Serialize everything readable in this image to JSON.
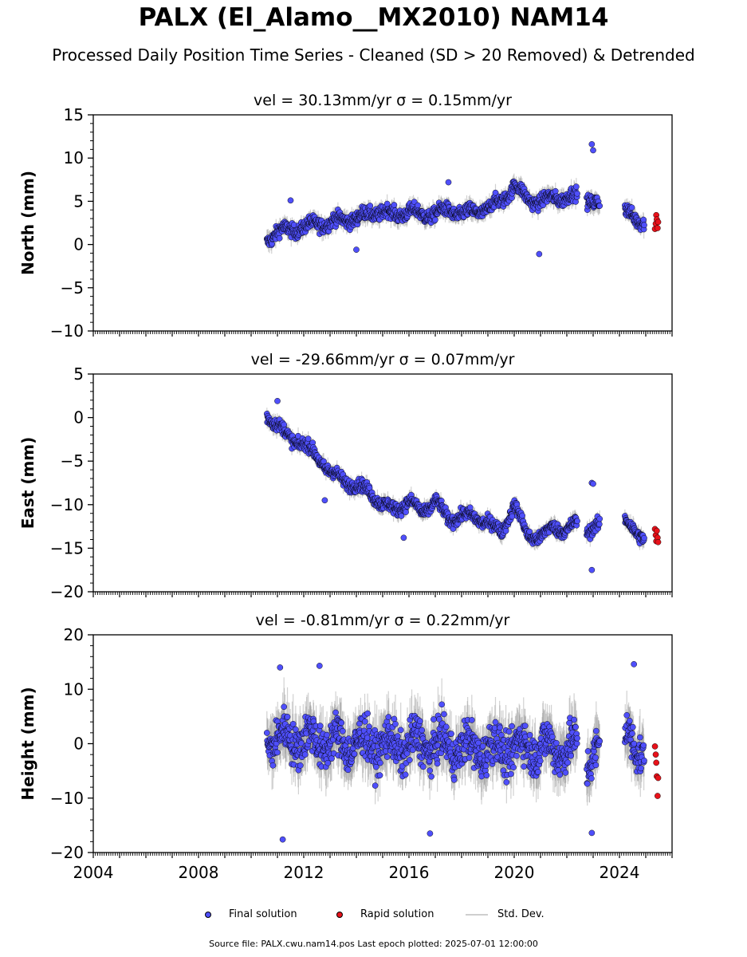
{
  "title": "PALX (El_Alamo__MX2010) NAM14",
  "subtitle": "Processed Daily Position Time Series - Cleaned (SD > 20 Removed) & Detrended",
  "legend": {
    "final": "Final solution",
    "rapid": "Rapid solution",
    "std": "Std. Dev."
  },
  "source": "Source file: PALX.cwu.nam14.pos  Last epoch plotted: 2025-07-01 12:00:00",
  "colors": {
    "final": "#4f4ffb",
    "rapid": "#e8121a",
    "std": "#9a9a9a",
    "outline": "#000000"
  },
  "chart_data": [
    {
      "type": "scatter",
      "panel": "north",
      "title_vel": "vel = 30.13mm/yr",
      "title_sigma": "σ = 0.15mm/yr",
      "ylabel": "North (mm)",
      "ylim": [
        -10,
        15
      ],
      "yticks": [
        "15",
        "10",
        "5",
        "0",
        "−5",
        "−10"
      ],
      "xlim": [
        2004,
        2026
      ],
      "gaps": [
        [
          2022.4,
          2022.75
        ],
        [
          2023.25,
          2024.2
        ],
        [
          2024.95,
          2025.25
        ]
      ],
      "final_trend": [
        [
          2010.6,
          0.5
        ],
        [
          2011.0,
          1.5
        ],
        [
          2011.5,
          1.7
        ],
        [
          2012.0,
          2.0
        ],
        [
          2012.5,
          2.4
        ],
        [
          2013.0,
          2.5
        ],
        [
          2013.5,
          2.9
        ],
        [
          2014.0,
          3.0
        ],
        [
          2014.5,
          3.6
        ],
        [
          2015.0,
          3.8
        ],
        [
          2015.5,
          3.4
        ],
        [
          2016.0,
          3.9
        ],
        [
          2016.5,
          3.4
        ],
        [
          2017.0,
          3.6
        ],
        [
          2017.5,
          4.0
        ],
        [
          2018.0,
          3.5
        ],
        [
          2018.5,
          3.8
        ],
        [
          2019.0,
          4.2
        ],
        [
          2019.5,
          5.0
        ],
        [
          2020.0,
          6.8
        ],
        [
          2020.5,
          5.3
        ],
        [
          2021.0,
          4.9
        ],
        [
          2021.5,
          5.5
        ],
        [
          2022.0,
          5.4
        ],
        [
          2022.4,
          5.6
        ],
        [
          2022.75,
          5.4
        ],
        [
          2023.25,
          4.4
        ],
        [
          2024.2,
          3.8
        ],
        [
          2024.95,
          2.6
        ]
      ],
      "noise": 1.1,
      "outliers": [
        [
          2022.95,
          11.6
        ],
        [
          2023.0,
          10.9
        ],
        [
          2020.95,
          -1.1
        ],
        [
          2017.5,
          7.2
        ],
        [
          2011.5,
          5.1
        ],
        [
          2014.0,
          -0.6
        ]
      ],
      "rapid": [
        [
          2025.35,
          1.8
        ],
        [
          2025.38,
          2.4
        ],
        [
          2025.4,
          3.4
        ],
        [
          2025.42,
          2.9
        ],
        [
          2025.45,
          1.9
        ],
        [
          2025.47,
          2.6
        ]
      ]
    },
    {
      "type": "scatter",
      "panel": "east",
      "title_vel": "vel = -29.66mm/yr",
      "title_sigma": "σ = 0.07mm/yr",
      "ylabel": "East (mm)",
      "ylim": [
        -20,
        5
      ],
      "yticks": [
        "5",
        "0",
        "−5",
        "−10",
        "−15",
        "−20"
      ],
      "xlim": [
        2004,
        2026
      ],
      "gaps": [
        [
          2022.4,
          2022.75
        ],
        [
          2023.25,
          2024.2
        ],
        [
          2024.95,
          2025.25
        ]
      ],
      "final_trend": [
        [
          2010.6,
          0.3
        ],
        [
          2011.0,
          -0.8
        ],
        [
          2011.5,
          -2.5
        ],
        [
          2012.0,
          -3.0
        ],
        [
          2012.5,
          -4.5
        ],
        [
          2013.0,
          -6.2
        ],
        [
          2013.5,
          -7.2
        ],
        [
          2014.0,
          -7.8
        ],
        [
          2014.5,
          -8.5
        ],
        [
          2015.0,
          -10.0
        ],
        [
          2015.5,
          -10.6
        ],
        [
          2016.0,
          -9.5
        ],
        [
          2016.5,
          -11.0
        ],
        [
          2017.0,
          -9.5
        ],
        [
          2017.5,
          -11.8
        ],
        [
          2018.0,
          -11.2
        ],
        [
          2018.5,
          -11.5
        ],
        [
          2019.0,
          -12.0
        ],
        [
          2019.5,
          -13.2
        ],
        [
          2020.0,
          -10.0
        ],
        [
          2020.5,
          -13.5
        ],
        [
          2021.0,
          -13.8
        ],
        [
          2021.5,
          -12.5
        ],
        [
          2022.0,
          -13.0
        ],
        [
          2022.4,
          -12.0
        ],
        [
          2022.75,
          -13.0
        ],
        [
          2023.25,
          -12.5
        ],
        [
          2024.2,
          -12.0
        ],
        [
          2024.95,
          -13.8
        ]
      ],
      "noise": 1.0,
      "outliers": [
        [
          2022.95,
          -7.5
        ],
        [
          2023.0,
          -7.6
        ],
        [
          2022.95,
          -17.5
        ],
        [
          2015.8,
          -13.8
        ],
        [
          2012.8,
          -9.5
        ],
        [
          2011.0,
          1.9
        ]
      ],
      "rapid": [
        [
          2025.35,
          -12.8
        ],
        [
          2025.38,
          -13.5
        ],
        [
          2025.4,
          -14.2
        ],
        [
          2025.42,
          -13.0
        ],
        [
          2025.45,
          -13.8
        ],
        [
          2025.47,
          -14.3
        ]
      ]
    },
    {
      "type": "scatter",
      "panel": "height",
      "title_vel": "vel = -0.81mm/yr",
      "title_sigma": "σ = 0.22mm/yr",
      "ylabel": "Height (mm)",
      "ylim": [
        -20,
        20
      ],
      "yticks": [
        "20",
        "10",
        "0",
        "−10",
        "−20"
      ],
      "xlim": [
        2004,
        2026
      ],
      "xticks": [
        "2004",
        "2008",
        "2012",
        "2016",
        "2020",
        "2024"
      ],
      "gaps": [
        [
          2022.4,
          2022.75
        ],
        [
          2023.25,
          2024.2
        ],
        [
          2024.95,
          2025.25
        ]
      ],
      "final_trend": [
        [
          2010.6,
          1.0
        ],
        [
          2011.5,
          1.0
        ],
        [
          2012.5,
          0.5
        ],
        [
          2013.5,
          0.0
        ],
        [
          2014.5,
          0.0
        ],
        [
          2015.5,
          -0.5
        ],
        [
          2016.5,
          0.0
        ],
        [
          2017.5,
          -0.5
        ],
        [
          2018.5,
          -1.0
        ],
        [
          2019.5,
          -1.0
        ],
        [
          2020.5,
          -0.5
        ],
        [
          2021.5,
          -1.0
        ],
        [
          2022.4,
          -1.0
        ],
        [
          2022.75,
          -3.0
        ],
        [
          2023.25,
          -2.0
        ],
        [
          2024.2,
          1.0
        ],
        [
          2024.95,
          -1.0
        ]
      ],
      "noise": 5.5,
      "outliers": [
        [
          2011.2,
          -17.6
        ],
        [
          2016.8,
          -16.5
        ],
        [
          2022.95,
          -16.4
        ],
        [
          2024.55,
          14.6
        ],
        [
          2012.6,
          14.3
        ],
        [
          2011.1,
          14.0
        ]
      ],
      "rapid": [
        [
          2025.35,
          -0.5
        ],
        [
          2025.38,
          -2.0
        ],
        [
          2025.4,
          -3.5
        ],
        [
          2025.42,
          -6.0
        ],
        [
          2025.45,
          -9.6
        ],
        [
          2025.47,
          -6.3
        ]
      ]
    }
  ]
}
